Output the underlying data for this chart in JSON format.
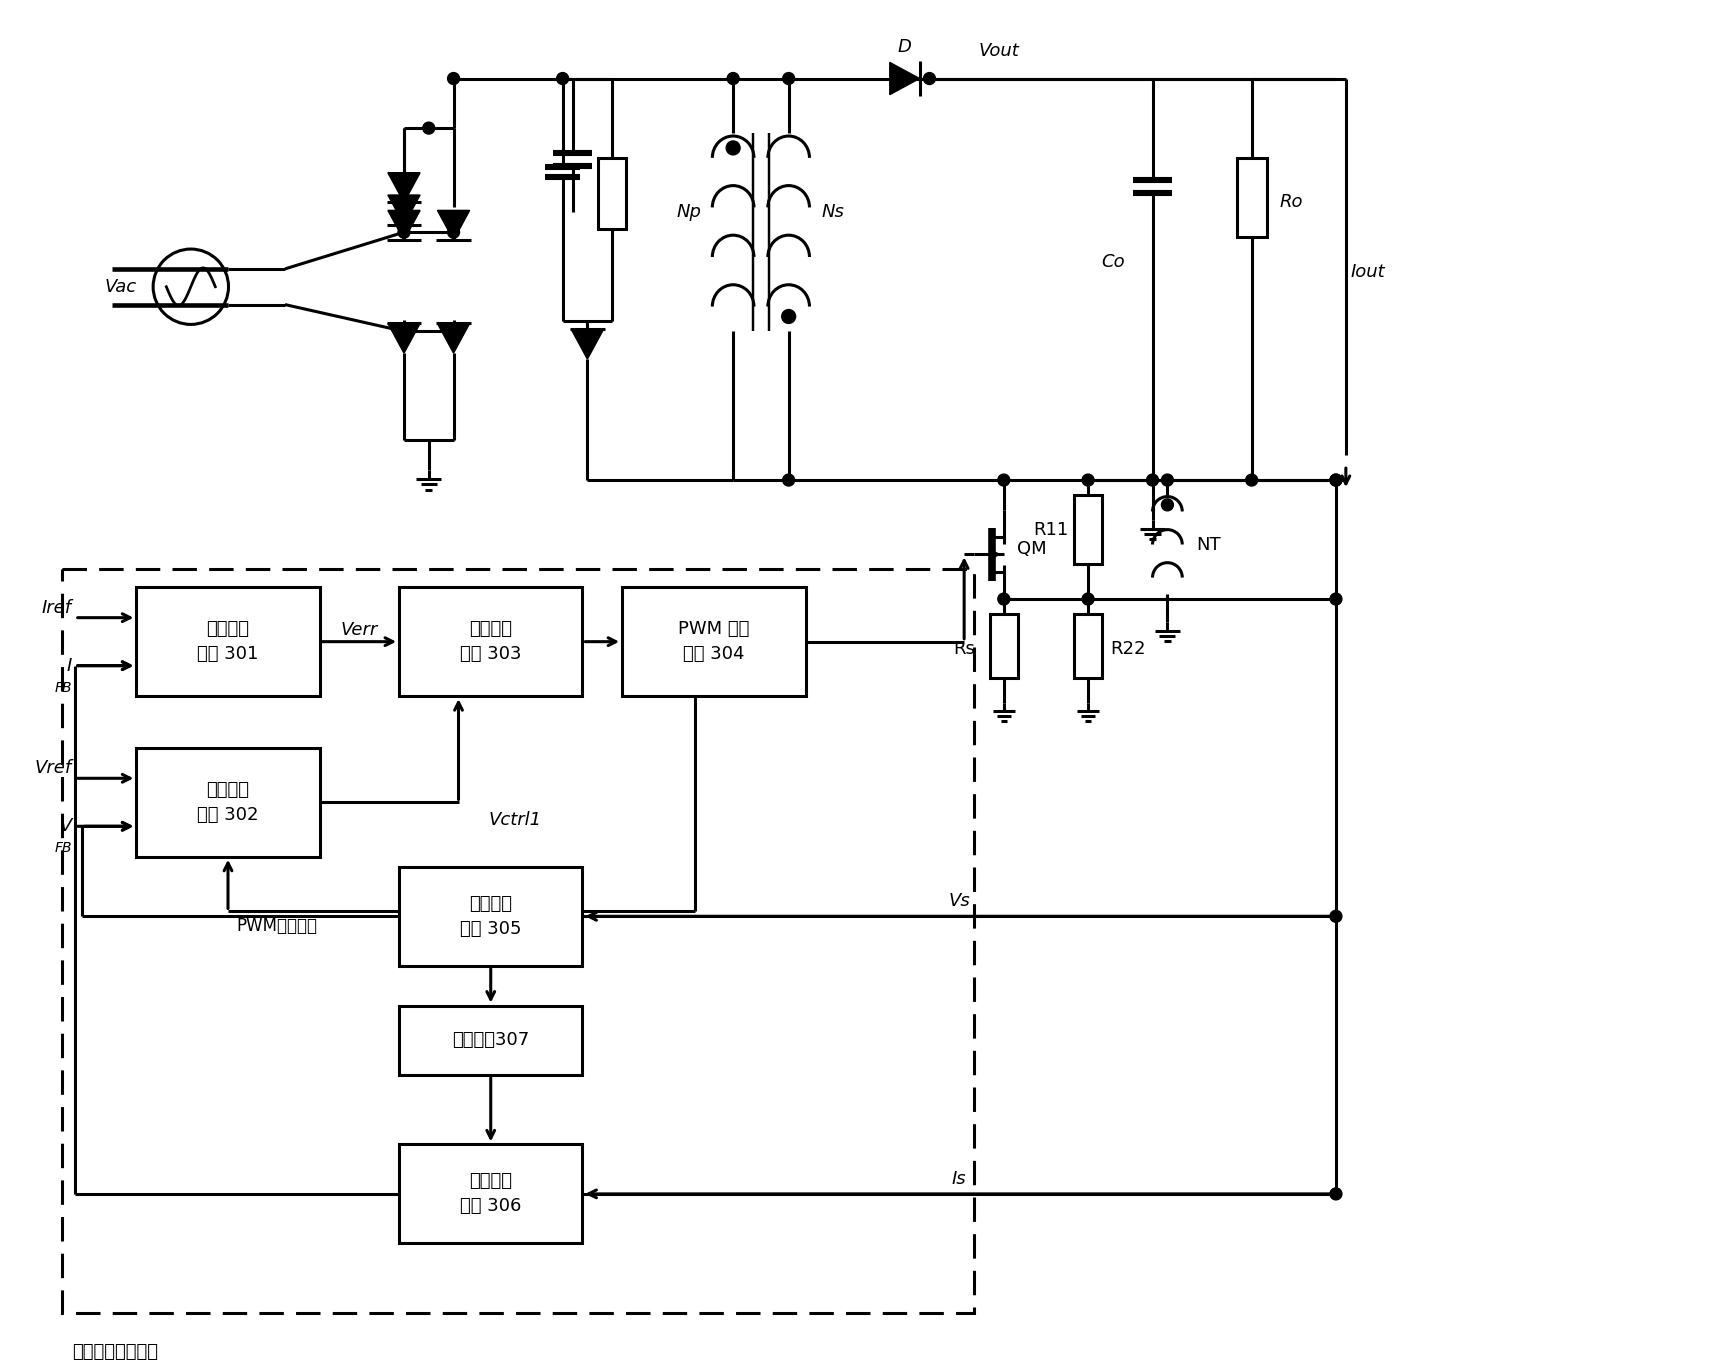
{
  "lw": 2.2,
  "fs": 13,
  "boxes": {
    "301": {
      "label": "电流控制\n电路 301"
    },
    "302": {
      "label": "电压控制\n电路 302"
    },
    "303": {
      "label": "选择控制\n电路 303"
    },
    "304": {
      "label": "PWM 控制\n电路 304"
    },
    "305": {
      "label": "电压反馈\n电路 305"
    },
    "306": {
      "label": "电流反馈\n电路 306"
    },
    "307": {
      "label": "计时电路307"
    }
  },
  "labels": {
    "Vac": "Vac",
    "Iref": "Iref",
    "IFB": "I",
    "FB1": "FB",
    "Vref": "Vref",
    "VFB": "V",
    "FB2": "FB",
    "Verr": "Verr",
    "Vctrl1": "Vctrl1",
    "PWMsig": "PWM控制信号",
    "QM": "QM",
    "Np": "Np",
    "Ns": "Ns",
    "D": "D",
    "Vout": "Vout",
    "Co": "Co",
    "Ro": "Ro",
    "Iout": "Iout",
    "Rs": "Rs",
    "R11": "R11",
    "R22": "R22",
    "NT": "NT",
    "Vs": "Vs",
    "Is": "Is",
    "dashed": "恒压恒流控制电路"
  }
}
